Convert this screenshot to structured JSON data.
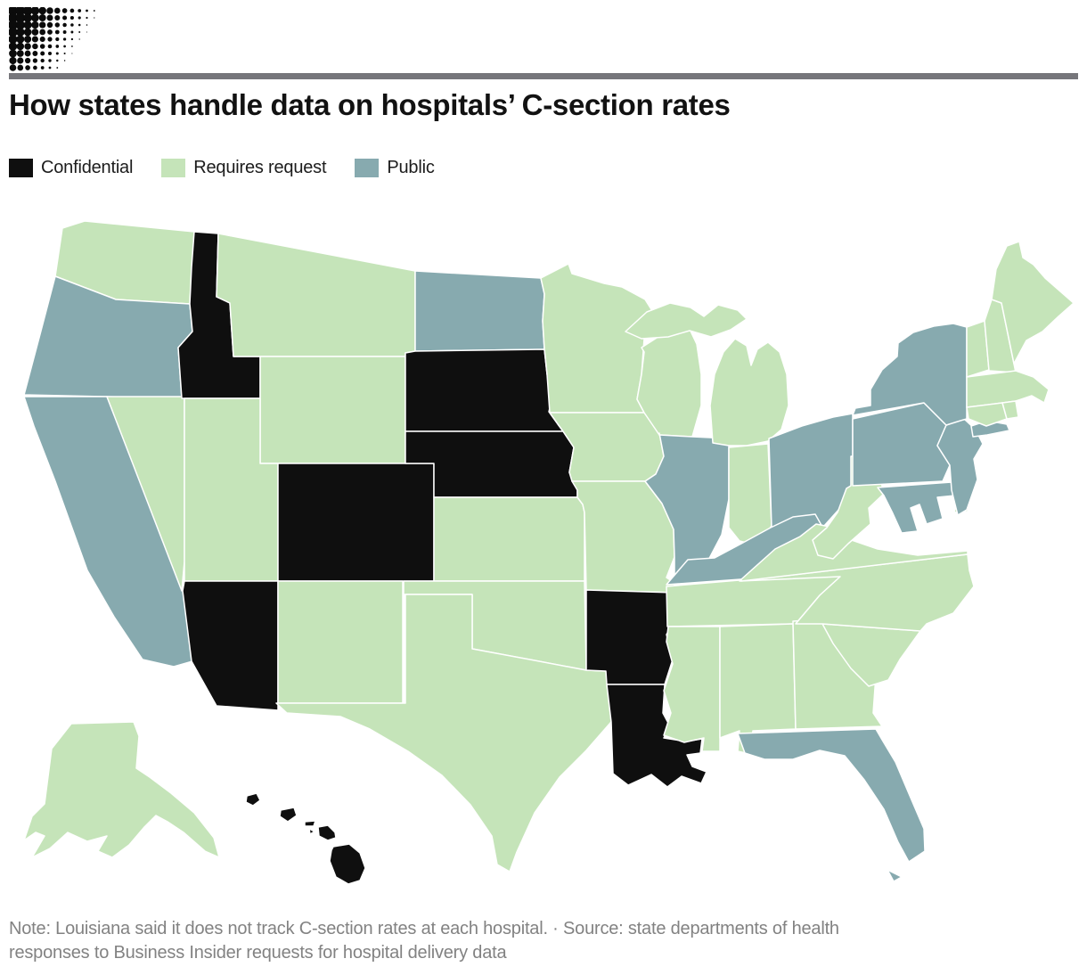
{
  "chart_data": {
    "type": "heatmap",
    "geography": "us-states-choropleth",
    "title": "How states handle data on hospitals’ C-section rates",
    "legend_position": "top-left",
    "legend": [
      {
        "key": "confidential",
        "label": "Confidential"
      },
      {
        "key": "requires_request",
        "label": "Requires request"
      },
      {
        "key": "public",
        "label": "Public"
      }
    ],
    "colors": {
      "confidential": "#0f0f0f",
      "requires_request": "#c5e4b9",
      "public": "#87aaaf"
    },
    "states": {
      "AK": "requires_request",
      "AL": "requires_request",
      "AR": "confidential",
      "AZ": "confidential",
      "CA": "public",
      "CO": "confidential",
      "CT": "requires_request",
      "DE": "requires_request",
      "FL": "public",
      "GA": "requires_request",
      "HI": "confidential",
      "IA": "requires_request",
      "ID": "confidential",
      "IL": "public",
      "IN": "requires_request",
      "KS": "requires_request",
      "KY": "public",
      "LA": "confidential",
      "MA": "requires_request",
      "MD": "public",
      "ME": "requires_request",
      "MI": "requires_request",
      "MN": "requires_request",
      "MO": "requires_request",
      "MS": "requires_request",
      "MT": "requires_request",
      "NC": "requires_request",
      "ND": "public",
      "NE": "confidential",
      "NH": "requires_request",
      "NJ": "public",
      "NM": "requires_request",
      "NV": "requires_request",
      "NY": "public",
      "OH": "public",
      "OK": "requires_request",
      "OR": "public",
      "PA": "public",
      "RI": "requires_request",
      "SC": "requires_request",
      "SD": "confidential",
      "TN": "requires_request",
      "TX": "requires_request",
      "UT": "requires_request",
      "VA": "requires_request",
      "VT": "requires_request",
      "WA": "requires_request",
      "WI": "requires_request",
      "WV": "requires_request",
      "WY": "requires_request"
    },
    "note_lines": [
      "Note: Louisiana said it does not track C-section rates at each hospital. · Source: state departments of health",
      "responses to Business Insider requests for hospital delivery data"
    ]
  }
}
